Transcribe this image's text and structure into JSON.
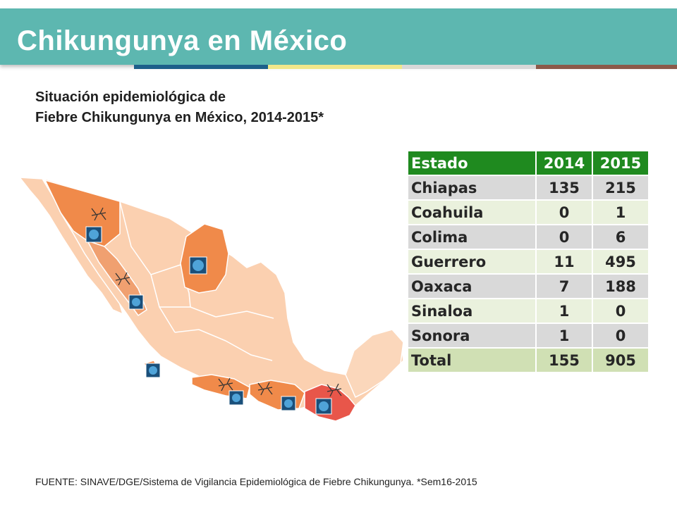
{
  "header": {
    "title": "Chikungunya en México"
  },
  "stripes": [
    "#1d5f8a",
    "#f1e78a",
    "#d8d8d8",
    "#8b5a4a"
  ],
  "subtitle": {
    "line1": "Situación epidemiológica de",
    "line2": "Fiebre Chikungunya  en México, 2014-2015*"
  },
  "colors": {
    "header_bg": "#5db7b0",
    "table_header": "#1f8a1f",
    "map_base": "#fbd0b0",
    "map_affected": "#f08a4a",
    "map_highest": "#e8564a"
  },
  "table": {
    "headers": [
      "Estado",
      "2014",
      "2015"
    ],
    "rows": [
      [
        "Chiapas",
        "135",
        "215"
      ],
      [
        "Coahuila",
        "0",
        "1"
      ],
      [
        "Colima",
        "0",
        "6"
      ],
      [
        "Guerrero",
        "11",
        "495"
      ],
      [
        "Oaxaca",
        "7",
        "188"
      ],
      [
        "Sinaloa",
        "1",
        "0"
      ],
      [
        "Sonora",
        "1",
        "0"
      ]
    ],
    "total": [
      "Total",
      "155",
      "905"
    ]
  },
  "footer": "FUENTE: SINAVE/DGE/Sistema de Vigilancia Epidemiológica de Fiebre Chikungunya. *Sem16-2015"
}
